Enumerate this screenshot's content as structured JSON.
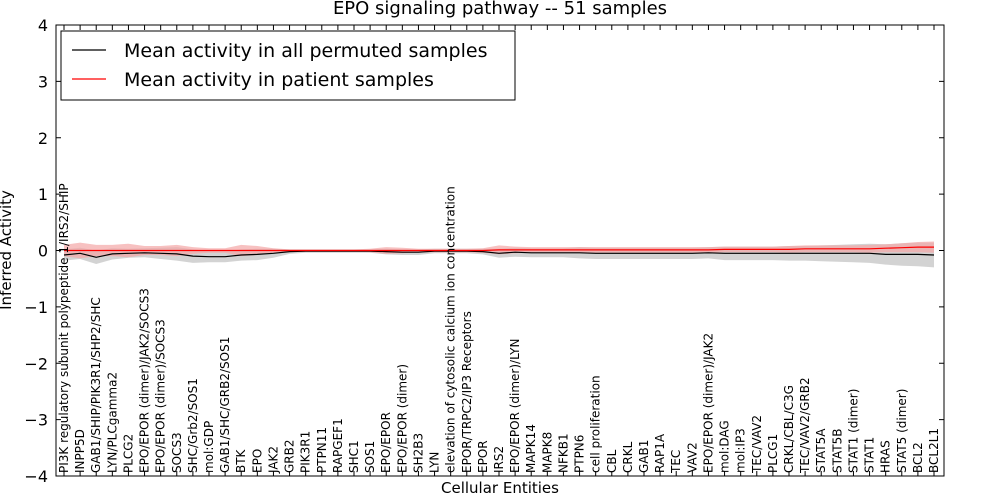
{
  "chart_data": {
    "type": "line",
    "title": "EPO signaling pathway -- 51 samples",
    "xlabel": "Cellular Entities",
    "ylabel": "Inferred Activity",
    "ylim": [
      -4,
      4
    ],
    "yticks": [
      "4",
      "3",
      "2",
      "1",
      "0",
      "−1",
      "−2",
      "−3",
      "−4"
    ],
    "grid": false,
    "legend_position": "top-left",
    "categories": [
      "PI3K regulatory subunit polypeptide 1/IRS2/SHIP",
      "INPP5D",
      "GAB1/SHIP/PIK3R1/SHP2/SHC",
      "LYN/PLCgamma2",
      "PLCG2",
      "EPO/EPOR (dimer)/JAK2/SOCS3",
      "EPO/EPOR (dimer)/SOCS3",
      "SOCS3",
      "SHC/Grb2/SOS1",
      "mol:GDP",
      "GAB1/SHC/GRB2/SOS1",
      "BTK",
      "EPO",
      "JAK2",
      "GRB2",
      "PIK3R1",
      "PTPN11",
      "RAPGEF1",
      "SHC1",
      "SOS1",
      "EPO/EPOR",
      "EPO/EPOR (dimer)",
      "SH2B3",
      "LYN",
      "elevation of cytosolic calcium ion concentration",
      "EPOR/TRPC2/IP3 Receptors",
      "EPOR",
      "IRS2",
      "EPO/EPOR (dimer)/LYN",
      "MAPK14",
      "MAPK8",
      "NFKB1",
      "PTPN6",
      "cell proliferation",
      "CBL",
      "CRKL",
      "GAB1",
      "RAP1A",
      "TEC",
      "VAV2",
      "EPO/EPOR (dimer)/JAK2",
      "mol:DAG",
      "mol:IP3",
      "TEC/VAV2",
      "PLCG1",
      "CRKL/CBL/C3G",
      "TEC/VAV2/GRB2",
      "STAT5A",
      "STAT5B",
      "STAT1 (dimer)",
      "STAT1",
      "HRAS",
      "STAT5 (dimer)",
      "BCL2",
      "BCL2L1"
    ],
    "series": [
      {
        "name": "Mean activity in all permuted samples",
        "color": "#000000",
        "band_color": "#bbbbbb",
        "values": [
          -0.08,
          -0.05,
          -0.12,
          -0.06,
          -0.05,
          -0.04,
          -0.05,
          -0.06,
          -0.1,
          -0.11,
          -0.11,
          -0.08,
          -0.07,
          -0.05,
          -0.02,
          -0.01,
          -0.01,
          -0.01,
          -0.01,
          -0.01,
          -0.02,
          -0.03,
          -0.03,
          -0.01,
          -0.01,
          -0.01,
          -0.02,
          -0.05,
          -0.03,
          -0.04,
          -0.04,
          -0.04,
          -0.04,
          -0.05,
          -0.05,
          -0.05,
          -0.05,
          -0.05,
          -0.05,
          -0.05,
          -0.04,
          -0.05,
          -0.05,
          -0.05,
          -0.05,
          -0.05,
          -0.05,
          -0.05,
          -0.05,
          -0.05,
          -0.05,
          -0.07,
          -0.07,
          -0.07,
          -0.08
        ],
        "band": [
          0.1,
          0.1,
          0.12,
          0.1,
          0.08,
          0.08,
          0.1,
          0.12,
          0.12,
          0.1,
          0.1,
          0.1,
          0.1,
          0.08,
          0.04,
          0.03,
          0.03,
          0.03,
          0.03,
          0.03,
          0.05,
          0.05,
          0.05,
          0.04,
          0.04,
          0.04,
          0.05,
          0.08,
          0.08,
          0.08,
          0.08,
          0.08,
          0.1,
          0.1,
          0.1,
          0.1,
          0.1,
          0.1,
          0.1,
          0.1,
          0.1,
          0.12,
          0.12,
          0.12,
          0.12,
          0.13,
          0.13,
          0.14,
          0.15,
          0.16,
          0.17,
          0.18,
          0.2,
          0.21,
          0.22
        ]
      },
      {
        "name": "Mean activity in patient samples",
        "color": "#ff0000",
        "band_color": "#f4a6a6",
        "values": [
          0.0,
          0.0,
          0.0,
          0.0,
          0.0,
          0.0,
          0.0,
          0.0,
          0.0,
          0.0,
          0.0,
          0.0,
          0.0,
          0.0,
          0.0,
          0.0,
          0.0,
          0.0,
          0.0,
          0.0,
          0.0,
          0.0,
          0.0,
          0.0,
          0.0,
          0.0,
          0.0,
          0.01,
          0.01,
          0.01,
          0.01,
          0.01,
          0.01,
          0.01,
          0.01,
          0.01,
          0.01,
          0.01,
          0.01,
          0.01,
          0.01,
          0.02,
          0.02,
          0.02,
          0.02,
          0.02,
          0.03,
          0.03,
          0.03,
          0.03,
          0.03,
          0.04,
          0.05,
          0.06,
          0.06
        ],
        "band": [
          0.1,
          0.14,
          0.1,
          0.1,
          0.12,
          0.08,
          0.08,
          0.1,
          0.06,
          0.04,
          0.04,
          0.1,
          0.08,
          0.04,
          0.02,
          0.02,
          0.02,
          0.02,
          0.02,
          0.03,
          0.06,
          0.05,
          0.03,
          0.03,
          0.03,
          0.03,
          0.04,
          0.08,
          0.06,
          0.05,
          0.05,
          0.05,
          0.05,
          0.05,
          0.05,
          0.05,
          0.05,
          0.05,
          0.05,
          0.05,
          0.05,
          0.05,
          0.05,
          0.05,
          0.05,
          0.06,
          0.06,
          0.06,
          0.06,
          0.06,
          0.07,
          0.07,
          0.08,
          0.09,
          0.1
        ]
      }
    ]
  }
}
